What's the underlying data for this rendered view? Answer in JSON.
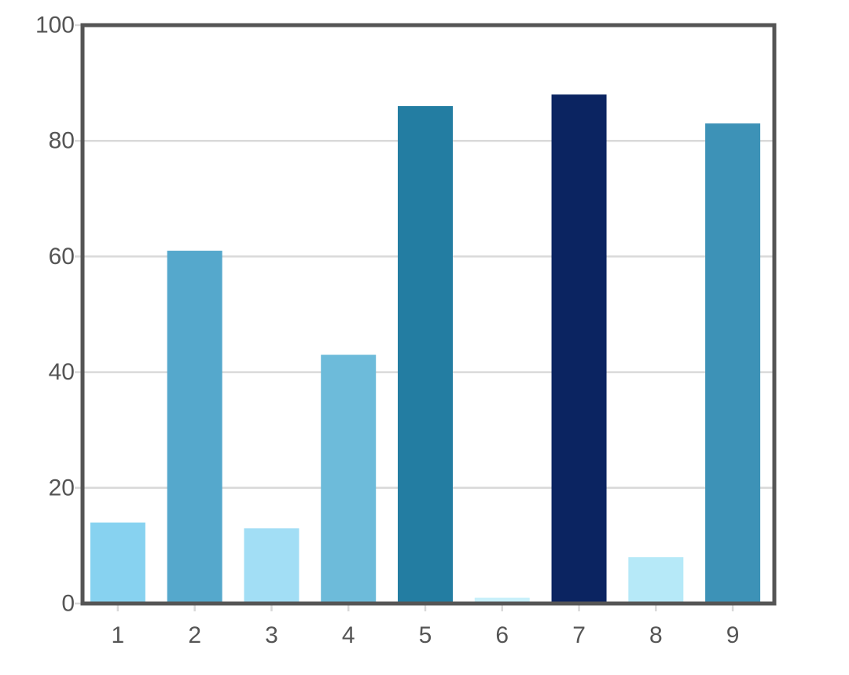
{
  "chart_data": {
    "type": "bar",
    "categories": [
      "1",
      "2",
      "3",
      "4",
      "5",
      "6",
      "7",
      "8",
      "9"
    ],
    "values": [
      14,
      61,
      13,
      43,
      86,
      1,
      88,
      8,
      83
    ],
    "bar_colors": [
      "#87d2f0",
      "#55a8cc",
      "#a2def5",
      "#6dbbda",
      "#237da2",
      "#c8f0fa",
      "#0b2461",
      "#b6e9f8",
      "#3d92b7"
    ],
    "title": "",
    "xlabel": "",
    "ylabel": "",
    "ylim": [
      0,
      100
    ],
    "yticks": [
      0,
      20,
      40,
      60,
      80,
      100
    ],
    "grid": true,
    "grid_color": "#d9d9d9",
    "frame_color": "#555555"
  }
}
